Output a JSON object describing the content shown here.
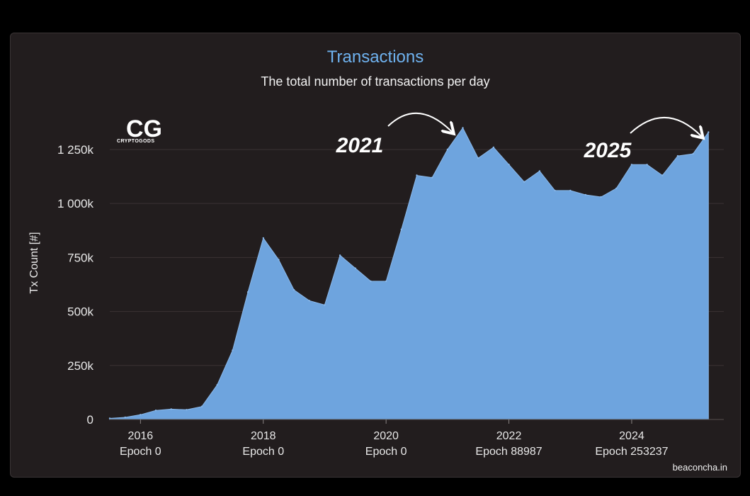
{
  "colors": {
    "area": "#6ea4de",
    "title": "#6fb2ef",
    "background": "#221d1e",
    "grid": "#3b3334"
  },
  "logo": {
    "mark": "CG",
    "text": "CRYPTOGODS",
    "icon": "cryptogods-logo"
  },
  "annotations": [
    {
      "label": "2021",
      "points_to_x": 2021.25
    },
    {
      "label": "2025",
      "points_to_x": 2025.2
    }
  ],
  "source": "beaconcha.in",
  "chart_data": {
    "type": "area",
    "title": "Transactions",
    "subtitle": "The total number of transactions per day",
    "xlabel": "",
    "ylabel": "Tx Count [#]",
    "xlim": [
      2015.5,
      2025.5
    ],
    "ylim": [
      0,
      1450000
    ],
    "grid": true,
    "x_ticks": [
      {
        "value": 2016,
        "label": "2016",
        "sublabel": "Epoch 0"
      },
      {
        "value": 2018,
        "label": "2018",
        "sublabel": "Epoch 0"
      },
      {
        "value": 2020,
        "label": "2020",
        "sublabel": "Epoch 0"
      },
      {
        "value": 2022,
        "label": "2022",
        "sublabel": "Epoch 88987"
      },
      {
        "value": 2024,
        "label": "2024",
        "sublabel": "Epoch 253237"
      }
    ],
    "y_ticks": [
      {
        "value": 0,
        "label": "0"
      },
      {
        "value": 250000,
        "label": "250k"
      },
      {
        "value": 500000,
        "label": "500k"
      },
      {
        "value": 750000,
        "label": "750k"
      },
      {
        "value": 1000000,
        "label": "1 000k"
      },
      {
        "value": 1250000,
        "label": "1 250k"
      }
    ],
    "series": [
      {
        "x": [
          2015.5,
          2015.75,
          2016.0,
          2016.25,
          2016.5,
          2016.75,
          2017.0,
          2017.25,
          2017.5,
          2017.75,
          2018.0,
          2018.25,
          2018.5,
          2018.75,
          2019.0,
          2019.25,
          2019.5,
          2019.75,
          2020.0,
          2020.25,
          2020.5,
          2020.75,
          2021.0,
          2021.25,
          2021.5,
          2021.75,
          2022.0,
          2022.25,
          2022.5,
          2022.75,
          2023.0,
          2023.25,
          2023.5,
          2023.75,
          2024.0,
          2024.25,
          2024.5,
          2024.75,
          2025.0,
          2025.25
        ],
        "values": [
          5000,
          10000,
          22000,
          42000,
          48000,
          45000,
          60000,
          160000,
          320000,
          590000,
          840000,
          740000,
          600000,
          550000,
          530000,
          760000,
          700000,
          640000,
          640000,
          880000,
          1130000,
          1120000,
          1250000,
          1350000,
          1210000,
          1260000,
          1180000,
          1100000,
          1150000,
          1060000,
          1060000,
          1040000,
          1030000,
          1070000,
          1180000,
          1180000,
          1130000,
          1220000,
          1230000,
          1330000
        ]
      }
    ]
  }
}
